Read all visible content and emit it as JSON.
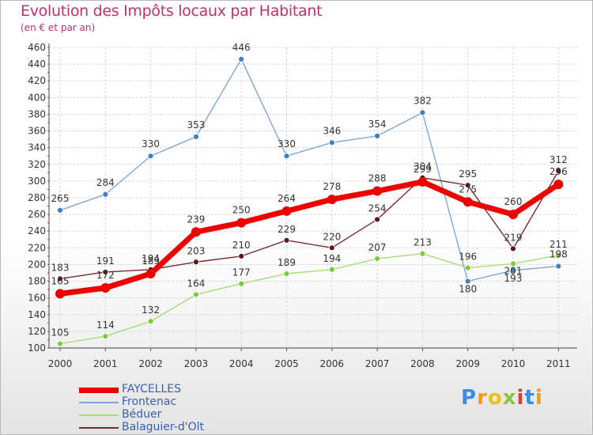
{
  "title": "Evolution des Impôts locaux par Habitant",
  "subtitle": "(en € et par an)",
  "logo": {
    "text": [
      "P",
      "r",
      "o",
      "x",
      "i",
      "t",
      "i"
    ],
    "colors": [
      "#3a8de0",
      "#f39a1c",
      "#e8c21a",
      "#8bc43a",
      "#e03a3a",
      "#3a8de0",
      "#f39a1c"
    ]
  },
  "chart_data": {
    "type": "line",
    "title": "Evolution des Impôts locaux par Habitant",
    "subtitle": "(en € et par an)",
    "xlabel": "",
    "ylabel": "",
    "ylim": [
      100,
      460
    ],
    "yticks": [
      "100",
      "120",
      "140",
      "160",
      "180",
      "200",
      "220",
      "240",
      "260",
      "280",
      "300",
      "320",
      "340",
      "360",
      "380",
      "400",
      "420",
      "440",
      "460"
    ],
    "categories": [
      "2000",
      "2001",
      "2002",
      "2003",
      "2004",
      "2005",
      "2006",
      "2007",
      "2008",
      "2009",
      "2010",
      "2011"
    ],
    "grid": true,
    "legend_position": "bottom-left",
    "series": [
      {
        "name": "FAYCELLES",
        "color": "#ee0000",
        "marker": "#ee0000",
        "width": 7,
        "r": 6,
        "values": [
          165,
          172,
          189,
          239,
          250,
          264,
          278,
          288,
          299,
          275,
          260,
          296
        ],
        "labels": [
          "165",
          "172",
          "189",
          "239",
          "250",
          "264",
          "278",
          "288",
          "299",
          "275",
          "260",
          "296"
        ]
      },
      {
        "name": "Frontenac",
        "color": "#7aa7d8",
        "marker": "#3a7fc8",
        "width": 1.4,
        "r": 3.5,
        "values": [
          265,
          284,
          330,
          353,
          446,
          330,
          346,
          354,
          382,
          180,
          193,
          198
        ],
        "labels": [
          "265",
          "284",
          "330",
          "353",
          "446",
          "330",
          "346",
          "354",
          "382",
          "180",
          "193",
          "198"
        ]
      },
      {
        "name": "Béduer",
        "color": "#a6dd7a",
        "marker": "#7acc3a",
        "width": 1.4,
        "r": 3.5,
        "values": [
          105,
          114,
          132,
          164,
          177,
          189,
          194,
          207,
          213,
          196,
          201,
          211
        ],
        "labels": [
          "105",
          "114",
          "132",
          "164",
          "177",
          "189",
          "194",
          "207",
          "213",
          "196",
          "201",
          "211"
        ]
      },
      {
        "name": "Balaguier-d'Olt",
        "color": "#7a2a2a",
        "marker": "#5a1818",
        "width": 1.4,
        "r": 3.5,
        "values": [
          183,
          191,
          194,
          203,
          210,
          229,
          220,
          254,
          304,
          295,
          219,
          312
        ],
        "labels": [
          "183",
          "191",
          "194",
          "203",
          "210",
          "229",
          "220",
          "254",
          "304",
          "295",
          "219",
          "312"
        ]
      }
    ]
  }
}
